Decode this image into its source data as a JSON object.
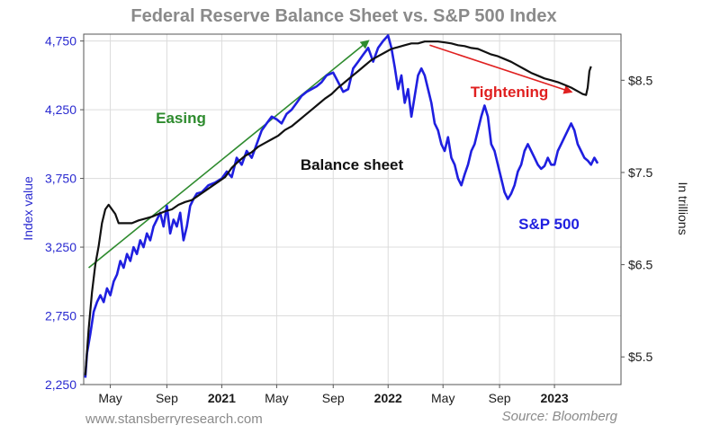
{
  "chart_data": {
    "type": "line",
    "title": "Federal Reserve Balance Sheet vs. S&P 500 Index",
    "ylabel": "Index value",
    "y2label": "In trillions",
    "ylim": [
      2250,
      4800
    ],
    "y2lim": [
      5.2,
      9.0
    ],
    "y_ticks": [
      "2,250",
      "2,750",
      "3,250",
      "3,750",
      "4,250",
      "4,750"
    ],
    "y_tick_values": [
      2250,
      2750,
      3250,
      3750,
      4250,
      4750
    ],
    "y2_ticks": [
      "$5.5",
      "$6.5",
      "$7.5",
      "$8.5"
    ],
    "y2_tick_values": [
      5.5,
      6.5,
      7.5,
      8.5
    ],
    "x_ticks": [
      {
        "label": "May",
        "t": 2020.33,
        "bold": false
      },
      {
        "label": "Sep",
        "t": 2020.67,
        "bold": false
      },
      {
        "label": "2021",
        "t": 2021.0,
        "bold": true
      },
      {
        "label": "May",
        "t": 2021.33,
        "bold": false
      },
      {
        "label": "Sep",
        "t": 2021.67,
        "bold": false
      },
      {
        "label": "2022",
        "t": 2022.0,
        "bold": true
      },
      {
        "label": "May",
        "t": 2022.33,
        "bold": false
      },
      {
        "label": "Sep",
        "t": 2022.67,
        "bold": false
      },
      {
        "label": "2023",
        "t": 2023.0,
        "bold": true
      }
    ],
    "xlim": [
      2020.17,
      2023.4
    ],
    "grid": true,
    "series": [
      {
        "name": "S&P 500",
        "color": "#1f1fe0",
        "axis": "left",
        "points": [
          [
            2020.18,
            2300
          ],
          [
            2020.19,
            2480
          ],
          [
            2020.21,
            2620
          ],
          [
            2020.23,
            2780
          ],
          [
            2020.25,
            2850
          ],
          [
            2020.27,
            2900
          ],
          [
            2020.29,
            2850
          ],
          [
            2020.31,
            2950
          ],
          [
            2020.33,
            2900
          ],
          [
            2020.35,
            3000
          ],
          [
            2020.37,
            3050
          ],
          [
            2020.39,
            3150
          ],
          [
            2020.41,
            3100
          ],
          [
            2020.43,
            3200
          ],
          [
            2020.45,
            3150
          ],
          [
            2020.47,
            3250
          ],
          [
            2020.49,
            3200
          ],
          [
            2020.51,
            3300
          ],
          [
            2020.53,
            3250
          ],
          [
            2020.55,
            3350
          ],
          [
            2020.57,
            3300
          ],
          [
            2020.59,
            3400
          ],
          [
            2020.61,
            3450
          ],
          [
            2020.63,
            3500
          ],
          [
            2020.65,
            3400
          ],
          [
            2020.67,
            3550
          ],
          [
            2020.69,
            3350
          ],
          [
            2020.71,
            3450
          ],
          [
            2020.73,
            3400
          ],
          [
            2020.75,
            3500
          ],
          [
            2020.77,
            3300
          ],
          [
            2020.79,
            3400
          ],
          [
            2020.81,
            3550
          ],
          [
            2020.83,
            3600
          ],
          [
            2020.85,
            3640
          ],
          [
            2020.88,
            3650
          ],
          [
            2020.92,
            3700
          ],
          [
            2020.96,
            3720
          ],
          [
            2021.0,
            3750
          ],
          [
            2021.03,
            3800
          ],
          [
            2021.06,
            3760
          ],
          [
            2021.09,
            3900
          ],
          [
            2021.12,
            3850
          ],
          [
            2021.15,
            3950
          ],
          [
            2021.18,
            3900
          ],
          [
            2021.21,
            4000
          ],
          [
            2021.24,
            4100
          ],
          [
            2021.27,
            4150
          ],
          [
            2021.3,
            4200
          ],
          [
            2021.33,
            4180
          ],
          [
            2021.36,
            4150
          ],
          [
            2021.39,
            4220
          ],
          [
            2021.42,
            4250
          ],
          [
            2021.45,
            4300
          ],
          [
            2021.48,
            4350
          ],
          [
            2021.51,
            4380
          ],
          [
            2021.54,
            4400
          ],
          [
            2021.57,
            4420
          ],
          [
            2021.6,
            4450
          ],
          [
            2021.63,
            4500
          ],
          [
            2021.67,
            4520
          ],
          [
            2021.7,
            4450
          ],
          [
            2021.73,
            4380
          ],
          [
            2021.76,
            4400
          ],
          [
            2021.79,
            4550
          ],
          [
            2021.82,
            4600
          ],
          [
            2021.85,
            4650
          ],
          [
            2021.88,
            4700
          ],
          [
            2021.91,
            4600
          ],
          [
            2021.94,
            4700
          ],
          [
            2021.97,
            4750
          ],
          [
            2022.0,
            4790
          ],
          [
            2022.02,
            4700
          ],
          [
            2022.04,
            4560
          ],
          [
            2022.06,
            4400
          ],
          [
            2022.08,
            4500
          ],
          [
            2022.1,
            4300
          ],
          [
            2022.12,
            4400
          ],
          [
            2022.14,
            4200
          ],
          [
            2022.16,
            4350
          ],
          [
            2022.18,
            4500
          ],
          [
            2022.2,
            4550
          ],
          [
            2022.22,
            4500
          ],
          [
            2022.24,
            4400
          ],
          [
            2022.26,
            4300
          ],
          [
            2022.28,
            4150
          ],
          [
            2022.3,
            4100
          ],
          [
            2022.32,
            4000
          ],
          [
            2022.34,
            3950
          ],
          [
            2022.36,
            4050
          ],
          [
            2022.38,
            3900
          ],
          [
            2022.4,
            3850
          ],
          [
            2022.42,
            3750
          ],
          [
            2022.44,
            3700
          ],
          [
            2022.46,
            3780
          ],
          [
            2022.48,
            3850
          ],
          [
            2022.5,
            3950
          ],
          [
            2022.52,
            4000
          ],
          [
            2022.54,
            4100
          ],
          [
            2022.56,
            4200
          ],
          [
            2022.58,
            4280
          ],
          [
            2022.6,
            4200
          ],
          [
            2022.62,
            4000
          ],
          [
            2022.64,
            3950
          ],
          [
            2022.66,
            3850
          ],
          [
            2022.68,
            3750
          ],
          [
            2022.7,
            3650
          ],
          [
            2022.72,
            3600
          ],
          [
            2022.74,
            3640
          ],
          [
            2022.76,
            3700
          ],
          [
            2022.78,
            3800
          ],
          [
            2022.8,
            3850
          ],
          [
            2022.82,
            3950
          ],
          [
            2022.84,
            4000
          ],
          [
            2022.86,
            3950
          ],
          [
            2022.88,
            3900
          ],
          [
            2022.9,
            3850
          ],
          [
            2022.92,
            3820
          ],
          [
            2022.94,
            3840
          ],
          [
            2022.96,
            3900
          ],
          [
            2022.98,
            3850
          ],
          [
            2023.0,
            3850
          ],
          [
            2023.02,
            3950
          ],
          [
            2023.04,
            4000
          ],
          [
            2023.06,
            4050
          ],
          [
            2023.08,
            4100
          ],
          [
            2023.1,
            4150
          ],
          [
            2023.12,
            4100
          ],
          [
            2023.14,
            4000
          ],
          [
            2023.16,
            3950
          ],
          [
            2023.18,
            3900
          ],
          [
            2023.2,
            3880
          ],
          [
            2023.22,
            3850
          ],
          [
            2023.24,
            3900
          ],
          [
            2023.26,
            3860
          ]
        ]
      },
      {
        "name": "Balance sheet",
        "color": "#111111",
        "axis": "right",
        "points": [
          [
            2020.18,
            5.3
          ],
          [
            2020.2,
            5.8
          ],
          [
            2020.22,
            6.2
          ],
          [
            2020.24,
            6.5
          ],
          [
            2020.26,
            6.7
          ],
          [
            2020.28,
            6.95
          ],
          [
            2020.3,
            7.1
          ],
          [
            2020.32,
            7.15
          ],
          [
            2020.34,
            7.1
          ],
          [
            2020.36,
            7.05
          ],
          [
            2020.38,
            6.95
          ],
          [
            2020.42,
            6.95
          ],
          [
            2020.46,
            6.95
          ],
          [
            2020.5,
            6.98
          ],
          [
            2020.54,
            7.0
          ],
          [
            2020.58,
            7.02
          ],
          [
            2020.62,
            7.05
          ],
          [
            2020.66,
            7.08
          ],
          [
            2020.7,
            7.1
          ],
          [
            2020.74,
            7.15
          ],
          [
            2020.78,
            7.18
          ],
          [
            2020.82,
            7.2
          ],
          [
            2020.86,
            7.25
          ],
          [
            2020.9,
            7.3
          ],
          [
            2020.94,
            7.35
          ],
          [
            2020.98,
            7.4
          ],
          [
            2021.02,
            7.45
          ],
          [
            2021.06,
            7.55
          ],
          [
            2021.1,
            7.62
          ],
          [
            2021.14,
            7.68
          ],
          [
            2021.18,
            7.72
          ],
          [
            2021.22,
            7.78
          ],
          [
            2021.26,
            7.82
          ],
          [
            2021.3,
            7.86
          ],
          [
            2021.34,
            7.9
          ],
          [
            2021.38,
            7.96
          ],
          [
            2021.42,
            8.0
          ],
          [
            2021.46,
            8.06
          ],
          [
            2021.5,
            8.12
          ],
          [
            2021.54,
            8.18
          ],
          [
            2021.58,
            8.24
          ],
          [
            2021.62,
            8.3
          ],
          [
            2021.66,
            8.35
          ],
          [
            2021.7,
            8.42
          ],
          [
            2021.74,
            8.48
          ],
          [
            2021.78,
            8.54
          ],
          [
            2021.82,
            8.6
          ],
          [
            2021.86,
            8.66
          ],
          [
            2021.9,
            8.72
          ],
          [
            2021.94,
            8.76
          ],
          [
            2021.98,
            8.8
          ],
          [
            2022.02,
            8.84
          ],
          [
            2022.06,
            8.86
          ],
          [
            2022.1,
            8.88
          ],
          [
            2022.14,
            8.9
          ],
          [
            2022.18,
            8.9
          ],
          [
            2022.22,
            8.92
          ],
          [
            2022.26,
            8.92
          ],
          [
            2022.3,
            8.92
          ],
          [
            2022.34,
            8.91
          ],
          [
            2022.38,
            8.9
          ],
          [
            2022.42,
            8.88
          ],
          [
            2022.46,
            8.87
          ],
          [
            2022.5,
            8.85
          ],
          [
            2022.54,
            8.84
          ],
          [
            2022.58,
            8.81
          ],
          [
            2022.62,
            8.78
          ],
          [
            2022.66,
            8.76
          ],
          [
            2022.7,
            8.73
          ],
          [
            2022.74,
            8.7
          ],
          [
            2022.78,
            8.66
          ],
          [
            2022.82,
            8.62
          ],
          [
            2022.86,
            8.58
          ],
          [
            2022.9,
            8.55
          ],
          [
            2022.94,
            8.52
          ],
          [
            2022.98,
            8.5
          ],
          [
            2023.02,
            8.48
          ],
          [
            2023.06,
            8.45
          ],
          [
            2023.1,
            8.42
          ],
          [
            2023.14,
            8.38
          ],
          [
            2023.17,
            8.35
          ],
          [
            2023.19,
            8.34
          ],
          [
            2023.2,
            8.42
          ],
          [
            2023.21,
            8.6
          ],
          [
            2023.22,
            8.65
          ]
        ]
      }
    ],
    "annotations": [
      {
        "text": "Easing",
        "color": "#2e8b2e"
      },
      {
        "text": "Balance sheet",
        "color": "#111111"
      },
      {
        "text": "Tightening",
        "color": "#e02020"
      },
      {
        "text": "S&P 500",
        "color": "#1f1fe0"
      }
    ],
    "arrows": [
      {
        "name": "easing-arrow",
        "color": "#2e8b2e",
        "from": [
          2020.2,
          3100
        ],
        "to": [
          2021.88,
          4750
        ]
      },
      {
        "name": "tightening-arrow",
        "color": "#e02020",
        "from": [
          2022.25,
          4720
        ],
        "to": [
          2023.1,
          4380
        ]
      }
    ],
    "footer_left": "www.stansberryresearch.com",
    "footer_right": "Source: Bloomberg"
  }
}
